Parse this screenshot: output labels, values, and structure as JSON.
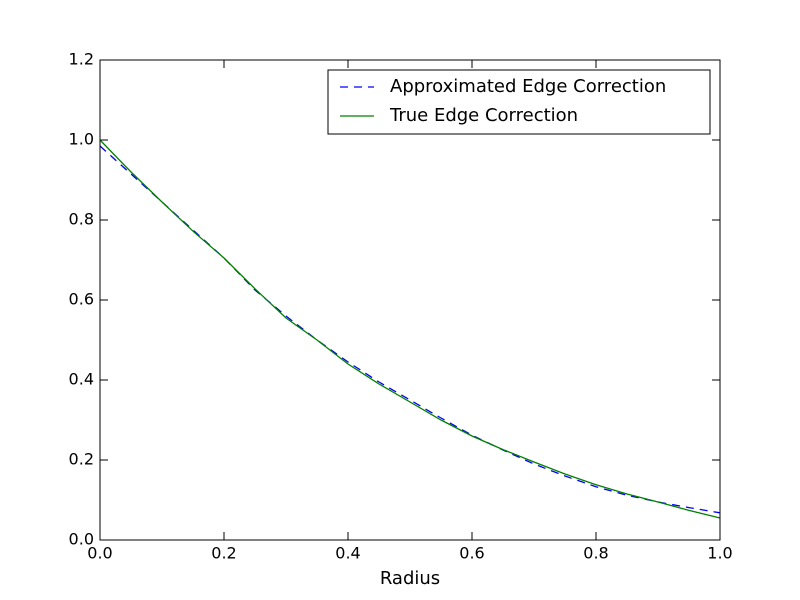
{
  "chart_data": {
    "type": "line",
    "xlabel": "Radius",
    "x": [
      0,
      0.05,
      0.1,
      0.15,
      0.2,
      0.25,
      0.3,
      0.35,
      0.4,
      0.45,
      0.5,
      0.55,
      0.6,
      0.65,
      0.7,
      0.75,
      0.8,
      0.85,
      0.9,
      0.95,
      1.0
    ],
    "series": [
      {
        "name": "Approximated Edge Correction",
        "color": "#0000ff",
        "linestyle": "dashed",
        "values": [
          0.985,
          0.915,
          0.845,
          0.775,
          0.705,
          0.625,
          0.56,
          0.5,
          0.445,
          0.395,
          0.35,
          0.305,
          0.262,
          0.225,
          0.19,
          0.16,
          0.133,
          0.112,
          0.095,
          0.081,
          0.068
        ]
      },
      {
        "name": "True Edge Correction",
        "color": "#008000",
        "linestyle": "solid",
        "values": [
          1.0,
          0.92,
          0.845,
          0.772,
          0.705,
          0.628,
          0.555,
          0.5,
          0.44,
          0.39,
          0.345,
          0.3,
          0.26,
          0.226,
          0.195,
          0.165,
          0.138,
          0.115,
          0.095,
          0.074,
          0.055
        ]
      }
    ],
    "xlim": [
      0,
      1.0
    ],
    "xticks": [
      {
        "value": 0,
        "label": "0.0"
      },
      {
        "value": 0.2,
        "label": "0.2"
      },
      {
        "value": 0.4,
        "label": "0.4"
      },
      {
        "value": 0.6,
        "label": "0.6"
      },
      {
        "value": 0.8,
        "label": "0.8"
      },
      {
        "value": 1.0,
        "label": "1.0"
      }
    ],
    "ylim": [
      0,
      1.2
    ],
    "yticks": [
      {
        "value": 0,
        "label": "0.0"
      },
      {
        "value": 0.2,
        "label": "0.2"
      },
      {
        "value": 0.4,
        "label": "0.4"
      },
      {
        "value": 0.6,
        "label": "0.6"
      },
      {
        "value": 0.8,
        "label": "0.8"
      },
      {
        "value": 1.0,
        "label": "1.0"
      },
      {
        "value": 1.2,
        "label": "1.2"
      }
    ],
    "grid": false,
    "legend": "upper right"
  }
}
